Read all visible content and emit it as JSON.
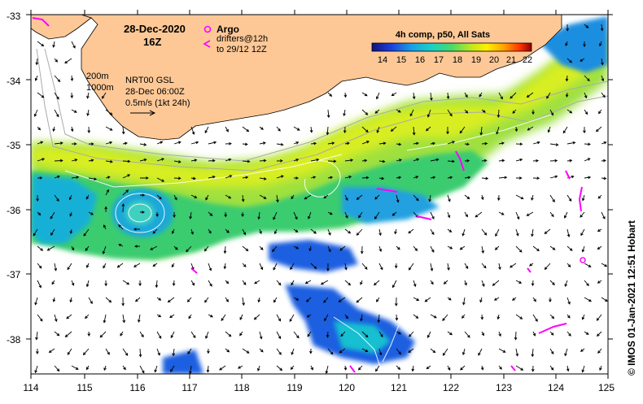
{
  "map": {
    "date_title": "28-Dec-2020",
    "time_title": "16Z",
    "argo_label": "Argo",
    "drifters_line1": "drifters@12h",
    "drifters_line2": "to 29/12 12Z",
    "depth_200": "200m",
    "depth_1000": "1000m",
    "currents_line1": "NRT00 GSL",
    "currents_line2": "28-Dec 06:00Z",
    "currents_line3": "0.5m/s (1kt 24h)",
    "colorbar_title": "4h comp, p50, All Sats",
    "colorbar_ticks": [
      "14",
      "15",
      "16",
      "17",
      "18",
      "19",
      "20",
      "21",
      "22"
    ],
    "credit": "© IMOS 01-Jan-2021 12:51 Hobart",
    "lon_ticks": [
      "114",
      "115",
      "116",
      "117",
      "118",
      "119",
      "120",
      "121",
      "122",
      "123",
      "124",
      "125"
    ],
    "lat_ticks": [
      "-33",
      "-34",
      "-35",
      "-36",
      "-37",
      "-38"
    ],
    "colors": {
      "land": "#fdc896",
      "ocean": "#ffffff",
      "argo": "#ff00ff",
      "drifter": "#ff00ff",
      "sst_cold": "#1a1aa0",
      "sst_warm": "#ff3300"
    },
    "colorbar_colors": [
      "#12127d",
      "#1c3fd9",
      "#1a8fe6",
      "#19c7d6",
      "#2fd28a",
      "#7ee03a",
      "#c8ec1a",
      "#fff000",
      "#ffb000",
      "#ff6000",
      "#d01010",
      "#8b0000"
    ]
  }
}
